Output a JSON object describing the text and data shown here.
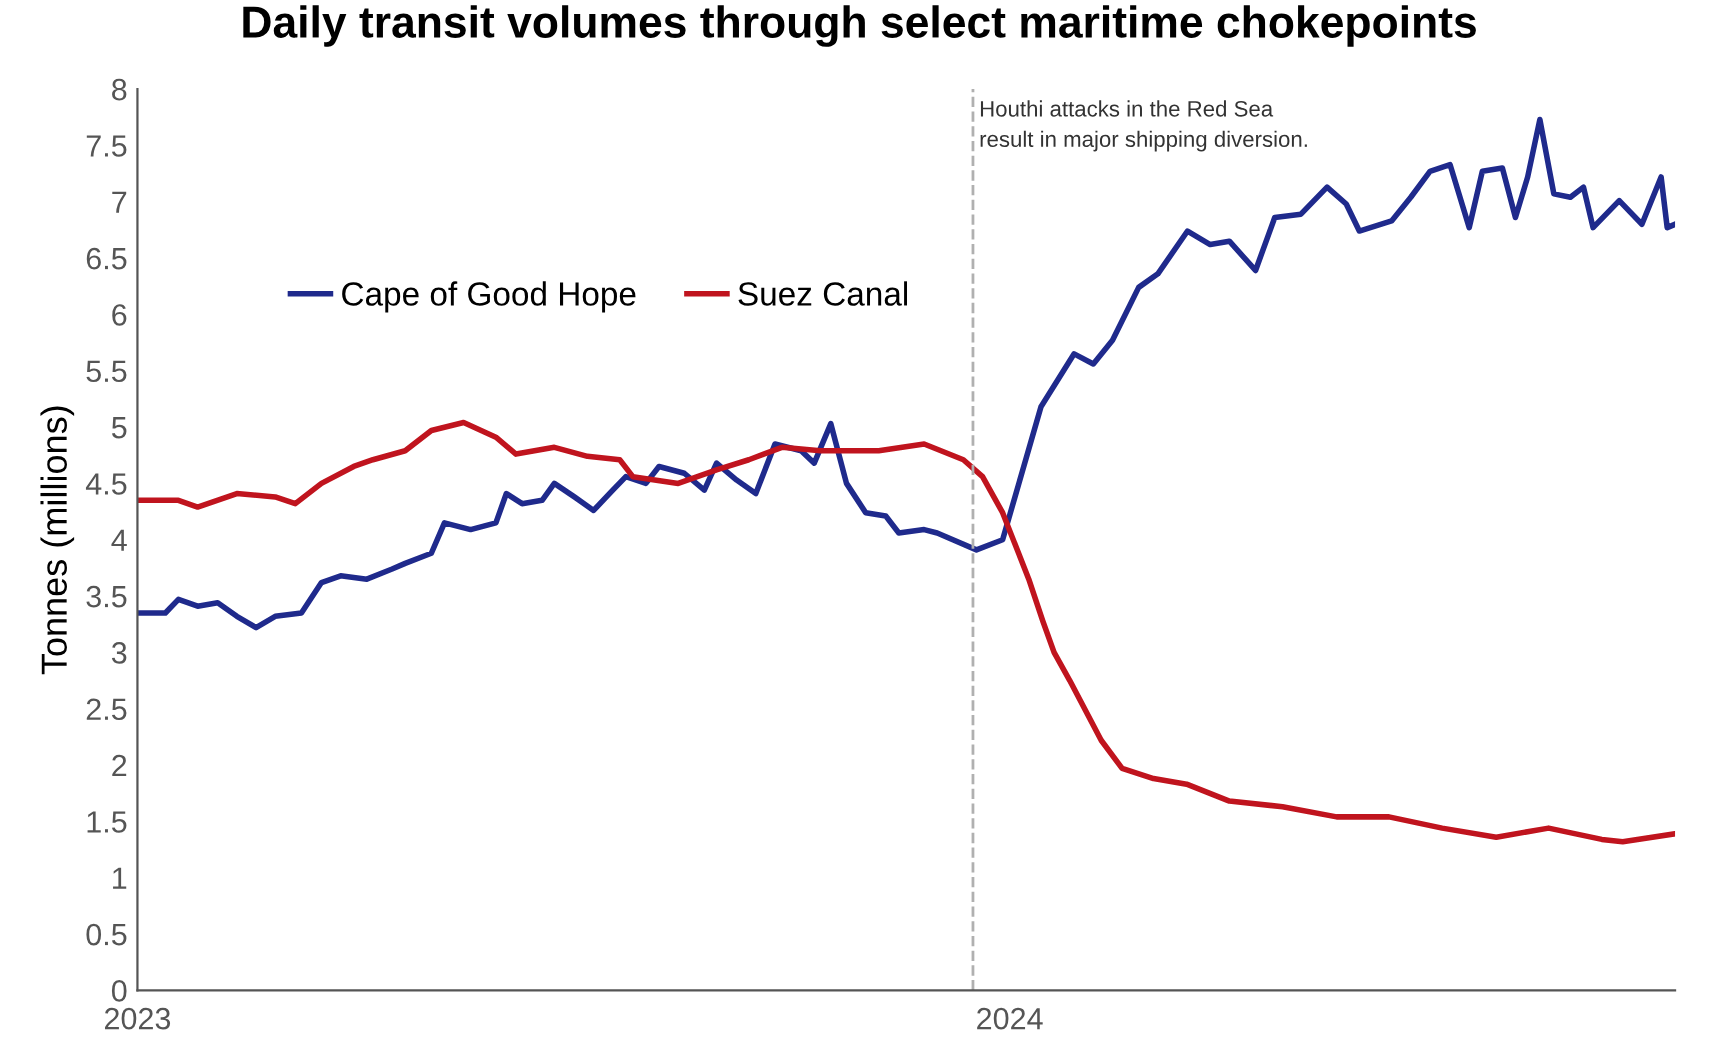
{
  "chart_data": {
    "type": "line",
    "title": "Daily transit volumes through select maritime chokepoints",
    "ylabel": "Tonnes (millions)",
    "xlim": [
      2023,
      2024.763
    ],
    "xticks": [
      {
        "value": 2023,
        "label": "2023"
      },
      {
        "value": 2024,
        "label": "2024"
      }
    ],
    "ylim": [
      0,
      8
    ],
    "yticks": [
      0,
      0.5,
      1,
      1.5,
      2,
      2.5,
      3,
      3.5,
      4,
      4.5,
      5,
      5.5,
      6,
      6.5,
      7,
      7.5,
      8
    ],
    "grid": false,
    "legend": "top left",
    "marker": "none",
    "line_style": "solid",
    "ref_lines": [
      {
        "axis": "x",
        "value": 2023.958,
        "label": "Houthi attacks in the Red Sea\nresult in major shipping diversion.",
        "color": "#b0b0b0",
        "line_style": "dashed"
      }
    ],
    "series": [
      {
        "name": "Cape of Good Hope",
        "color": "#1f2a8c",
        "x": [
          2023.002,
          2023.032,
          2023.047,
          2023.069,
          2023.092,
          2023.114,
          2023.136,
          2023.158,
          2023.188,
          2023.211,
          2023.233,
          2023.263,
          2023.292,
          2023.307,
          2023.337,
          2023.352,
          2023.382,
          2023.411,
          2023.423,
          2023.441,
          2023.464,
          2023.478,
          2023.501,
          2023.523,
          2023.545,
          2023.56,
          2023.583,
          2023.598,
          2023.627,
          2023.65,
          2023.664,
          2023.687,
          2023.709,
          2023.731,
          2023.761,
          2023.776,
          2023.795,
          2023.813,
          2023.835,
          2023.858,
          2023.873,
          2023.902,
          2023.917,
          2023.962,
          2023.992,
          2024.014,
          2024.036,
          2024.074,
          2024.096,
          2024.118,
          2024.148,
          2024.17,
          2024.204,
          2024.23,
          2024.252,
          2024.282,
          2024.304,
          2024.334,
          2024.364,
          2024.386,
          2024.401,
          2024.438,
          2024.46,
          2024.482,
          2024.505,
          2024.527,
          2024.542,
          2024.565,
          2024.58,
          2024.594,
          2024.608,
          2024.624,
          2024.643,
          2024.658,
          2024.669,
          2024.699,
          2024.725,
          2024.747,
          2024.754,
          2024.763
        ],
        "values": [
          3.35,
          3.35,
          3.47,
          3.41,
          3.44,
          3.32,
          3.22,
          3.32,
          3.35,
          3.62,
          3.68,
          3.65,
          3.74,
          3.79,
          3.88,
          4.15,
          4.09,
          4.15,
          4.41,
          4.32,
          4.35,
          4.5,
          4.38,
          4.26,
          4.44,
          4.56,
          4.5,
          4.65,
          4.59,
          4.44,
          4.68,
          4.53,
          4.41,
          4.85,
          4.79,
          4.68,
          5.03,
          4.5,
          4.24,
          4.21,
          4.06,
          4.09,
          4.06,
          3.91,
          4.0,
          4.59,
          5.18,
          5.65,
          5.56,
          5.77,
          6.24,
          6.36,
          6.74,
          6.62,
          6.65,
          6.39,
          6.86,
          6.89,
          7.13,
          6.98,
          6.74,
          6.83,
          7.04,
          7.27,
          7.33,
          6.77,
          7.27,
          7.3,
          6.86,
          7.22,
          7.73,
          7.07,
          7.04,
          7.13,
          6.77,
          7.01,
          6.8,
          7.22,
          6.77,
          6.8
        ]
      },
      {
        "name": "Suez Canal",
        "color": "#c0141e",
        "x": [
          2023.002,
          2023.047,
          2023.069,
          2023.114,
          2023.158,
          2023.181,
          2023.211,
          2023.248,
          2023.27,
          2023.307,
          2023.337,
          2023.374,
          2023.411,
          2023.434,
          2023.478,
          2023.516,
          2023.553,
          2023.568,
          2023.62,
          2023.664,
          2023.701,
          2023.739,
          2023.783,
          2023.85,
          2023.902,
          2023.947,
          2023.969,
          2023.992,
          2024.022,
          2024.038,
          2024.051,
          2024.069,
          2024.105,
          2024.129,
          2024.165,
          2024.203,
          2024.252,
          2024.313,
          2024.375,
          2024.435,
          2024.496,
          2024.558,
          2024.618,
          2024.679,
          2024.703,
          2024.763
        ],
        "values": [
          4.35,
          4.35,
          4.29,
          4.41,
          4.38,
          4.32,
          4.5,
          4.65,
          4.71,
          4.79,
          4.97,
          5.04,
          4.91,
          4.76,
          4.82,
          4.74,
          4.71,
          4.56,
          4.5,
          4.62,
          4.71,
          4.82,
          4.79,
          4.79,
          4.85,
          4.71,
          4.56,
          4.24,
          3.65,
          3.28,
          3.0,
          2.75,
          2.22,
          1.97,
          1.88,
          1.83,
          1.68,
          1.63,
          1.54,
          1.54,
          1.44,
          1.36,
          1.44,
          1.34,
          1.32,
          1.39
        ]
      }
    ]
  }
}
